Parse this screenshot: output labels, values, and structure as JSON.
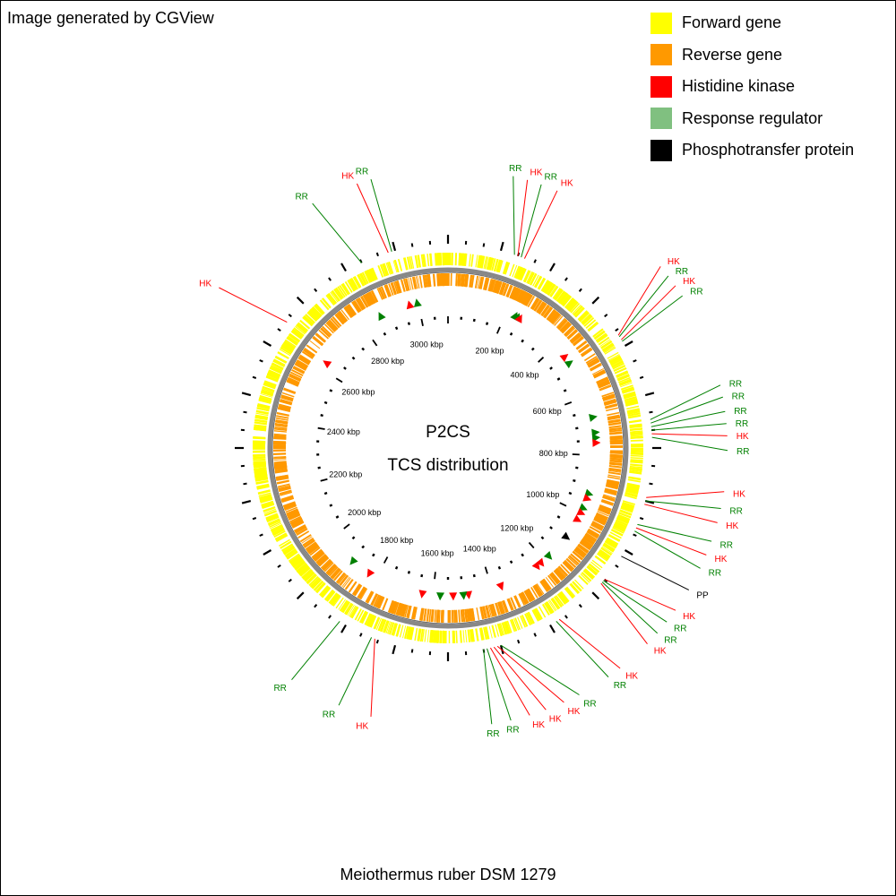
{
  "header": {
    "credit": "Image generated by CGView"
  },
  "legend": {
    "items": [
      {
        "label": "Forward gene",
        "color": "#ffff00"
      },
      {
        "label": "Reverse gene",
        "color": "#ff9900"
      },
      {
        "label": "Histidine kinase",
        "color": "#ff0000"
      },
      {
        "label": "Response regulator",
        "color": "#80c080"
      },
      {
        "label": "Phosphotransfer protein",
        "color": "#000000"
      }
    ]
  },
  "map": {
    "title": "P2CS",
    "subtitle": "TCS distribution",
    "organism": "Meiothermus ruber DSM 1279",
    "genome_kbp": 3100,
    "ruler_labels": [
      {
        "kbp": 200,
        "label": "200 kbp"
      },
      {
        "kbp": 400,
        "label": "400 kbp"
      },
      {
        "kbp": 600,
        "label": "600 kbp"
      },
      {
        "kbp": 800,
        "label": "800 kbp"
      },
      {
        "kbp": 1000,
        "label": "1000 kbp"
      },
      {
        "kbp": 1200,
        "label": "1200 kbp"
      },
      {
        "kbp": 1400,
        "label": "1400 kbp"
      },
      {
        "kbp": 1600,
        "label": "1600 kbp"
      },
      {
        "kbp": 1800,
        "label": "1800 kbp"
      },
      {
        "kbp": 2000,
        "label": "2000 kbp"
      },
      {
        "kbp": 2200,
        "label": "2200 kbp"
      },
      {
        "kbp": 2400,
        "label": "2400 kbp"
      },
      {
        "kbp": 2600,
        "label": "2600 kbp"
      },
      {
        "kbp": 2800,
        "label": "2800 kbp"
      },
      {
        "kbp": 3000,
        "label": "3000 kbp"
      }
    ],
    "features": [
      {
        "label": "RR",
        "type": "RR",
        "angle_deg": 19,
        "label_angle_deg": 13.5
      },
      {
        "label": "HK",
        "type": "HK",
        "angle_deg": 20,
        "label_angle_deg": 16.5
      },
      {
        "label": "RR",
        "type": "RR",
        "angle_deg": 21,
        "label_angle_deg": 19.5
      },
      {
        "label": "HK",
        "type": "HK",
        "angle_deg": 22,
        "label_angle_deg": 23
      },
      {
        "label": "HK",
        "type": "HK",
        "angle_deg": 56.5,
        "label_angle_deg": 49.5
      },
      {
        "label": "RR",
        "type": "RR",
        "angle_deg": 57,
        "label_angle_deg": 52
      },
      {
        "label": "HK",
        "type": "HK",
        "angle_deg": 58,
        "label_angle_deg": 54.5
      },
      {
        "label": "RR",
        "type": "RR",
        "angle_deg": 58.5,
        "label_angle_deg": 57
      },
      {
        "label": "RR",
        "type": "RR",
        "angle_deg": 82,
        "label_angle_deg": 77
      },
      {
        "label": "RR",
        "type": "RR",
        "angle_deg": 83,
        "label_angle_deg": 79.5
      },
      {
        "label": "RR",
        "type": "RR",
        "angle_deg": 84,
        "label_angle_deg": 82.5
      },
      {
        "label": "RR",
        "type": "RR",
        "angle_deg": 85,
        "label_angle_deg": 85
      },
      {
        "label": "HK",
        "type": "HK",
        "angle_deg": 86,
        "label_angle_deg": 87.5
      },
      {
        "label": "RR",
        "type": "RR",
        "angle_deg": 87,
        "label_angle_deg": 90.5
      },
      {
        "label": "HK",
        "type": "HK",
        "angle_deg": 104,
        "label_angle_deg": 99
      },
      {
        "label": "RR",
        "type": "RR",
        "angle_deg": 105,
        "label_angle_deg": 102.5
      },
      {
        "label": "HK",
        "type": "HK",
        "angle_deg": 106,
        "label_angle_deg": 105.5
      },
      {
        "label": "RR",
        "type": "RR",
        "angle_deg": 112,
        "label_angle_deg": 109.5
      },
      {
        "label": "HK",
        "type": "HK",
        "angle_deg": 113,
        "label_angle_deg": 112.5
      },
      {
        "label": "RR",
        "type": "RR",
        "angle_deg": 114,
        "label_angle_deg": 115.5
      },
      {
        "label": "PP",
        "type": "PP",
        "angle_deg": 122,
        "label_angle_deg": 120.5
      },
      {
        "label": "HK",
        "type": "HK",
        "angle_deg": 130,
        "label_angle_deg": 125.5
      },
      {
        "label": "RR",
        "type": "RR",
        "angle_deg": 130.5,
        "label_angle_deg": 128.5
      },
      {
        "label": "RR",
        "type": "RR",
        "angle_deg": 131,
        "label_angle_deg": 131.5
      },
      {
        "label": "HK",
        "type": "HK",
        "angle_deg": 131.5,
        "label_angle_deg": 134.5
      },
      {
        "label": "HK",
        "type": "HK",
        "angle_deg": 147,
        "label_angle_deg": 142
      },
      {
        "label": "RR",
        "type": "RR",
        "angle_deg": 148,
        "label_angle_deg": 145
      },
      {
        "label": "RR",
        "type": "RR",
        "angle_deg": 165,
        "label_angle_deg": 152
      },
      {
        "label": "HK",
        "type": "HK",
        "angle_deg": 166,
        "label_angle_deg": 155.5
      },
      {
        "label": "HK",
        "type": "HK",
        "angle_deg": 167,
        "label_angle_deg": 159.5
      },
      {
        "label": "HK",
        "type": "HK",
        "angle_deg": 168,
        "label_angle_deg": 163
      },
      {
        "label": "RR",
        "type": "RR",
        "angle_deg": 169,
        "label_angle_deg": 167
      },
      {
        "label": "RR",
        "type": "RR",
        "angle_deg": 170,
        "label_angle_deg": 171
      },
      {
        "label": "HK",
        "type": "HK",
        "angle_deg": 201,
        "label_angle_deg": 196
      },
      {
        "label": "RR",
        "type": "RR",
        "angle_deg": 202,
        "label_angle_deg": 203
      },
      {
        "label": "RR",
        "type": "RR",
        "angle_deg": 212,
        "label_angle_deg": 214
      },
      {
        "label": "HK",
        "type": "HK",
        "angle_deg": 308,
        "label_angle_deg": 305
      },
      {
        "label": "RR",
        "type": "RR",
        "angle_deg": 335,
        "label_angle_deg": 331
      },
      {
        "label": "HK",
        "type": "HK",
        "angle_deg": 343,
        "label_angle_deg": 341
      },
      {
        "label": "RR",
        "type": "RR",
        "angle_deg": 344,
        "label_angle_deg": 344
      }
    ],
    "markers": [
      {
        "type": "RR",
        "angle_deg": 27
      },
      {
        "type": "RR",
        "angle_deg": 28
      },
      {
        "type": "HK",
        "angle_deg": 29
      },
      {
        "type": "HK",
        "angle_deg": 52
      },
      {
        "type": "RR",
        "angle_deg": 55
      },
      {
        "type": "RR",
        "angle_deg": 78
      },
      {
        "type": "RR",
        "angle_deg": 84
      },
      {
        "type": "RR",
        "angle_deg": 86
      },
      {
        "type": "HK",
        "angle_deg": 88
      },
      {
        "type": "RR",
        "angle_deg": 108
      },
      {
        "type": "HK",
        "angle_deg": 110
      },
      {
        "type": "RR",
        "angle_deg": 114
      },
      {
        "type": "HK",
        "angle_deg": 116
      },
      {
        "type": "HK",
        "angle_deg": 119
      },
      {
        "type": "PP",
        "angle_deg": 127
      },
      {
        "type": "RR",
        "angle_deg": 137
      },
      {
        "type": "HK",
        "angle_deg": 141
      },
      {
        "type": "HK",
        "angle_deg": 143
      },
      {
        "type": "HK",
        "angle_deg": 159
      },
      {
        "type": "HK",
        "angle_deg": 172
      },
      {
        "type": "RR",
        "angle_deg": 174
      },
      {
        "type": "HK",
        "angle_deg": 178
      },
      {
        "type": "RR",
        "angle_deg": 183
      },
      {
        "type": "HK",
        "angle_deg": 190
      },
      {
        "type": "HK",
        "angle_deg": 212
      },
      {
        "type": "RR",
        "angle_deg": 220
      },
      {
        "type": "HK",
        "angle_deg": 305
      },
      {
        "type": "RR",
        "angle_deg": 333
      },
      {
        "type": "HK",
        "angle_deg": 345
      },
      {
        "type": "RR",
        "angle_deg": 348
      }
    ]
  }
}
